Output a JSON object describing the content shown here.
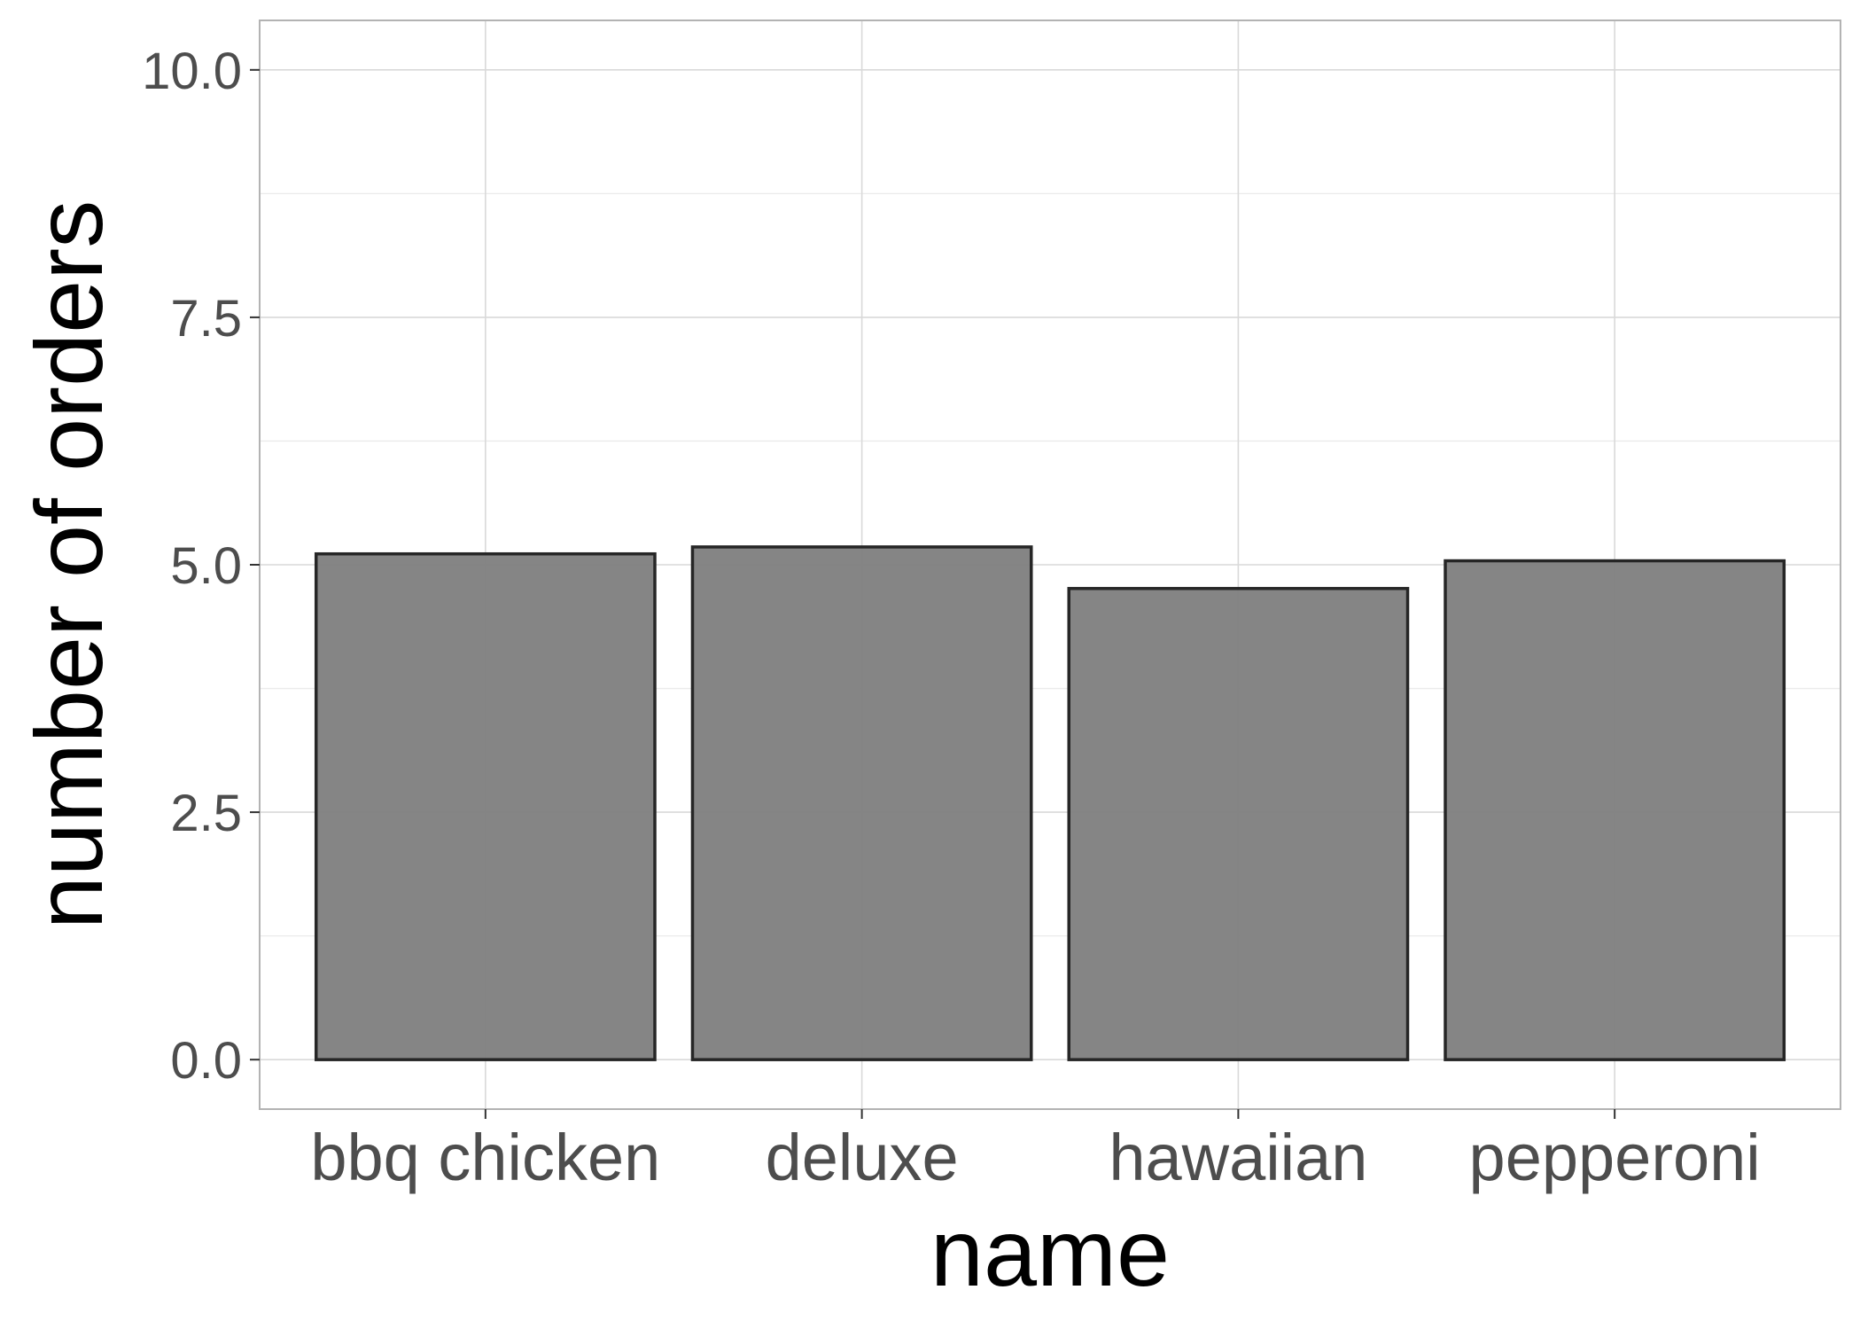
{
  "chart_data": {
    "type": "bar",
    "categories": [
      "bbq chicken",
      "deluxe",
      "hawaiian",
      "pepperoni"
    ],
    "values": [
      5.11,
      5.18,
      4.76,
      5.04
    ],
    "xlabel": "name",
    "ylabel": "number of orders",
    "ylim": [
      -0.5,
      10.5
    ],
    "yticks": [
      0.0,
      2.5,
      5.0,
      7.5,
      10.0
    ],
    "ytick_labels": [
      "0.0",
      "2.5",
      "5.0",
      "7.5",
      "10.0"
    ],
    "grid": true,
    "bar_fill": "#808080",
    "bar_stroke": "#262626",
    "panel_border": "#b3b3b3",
    "grid_major": "#d9d9d9",
    "grid_minor": "#ebebeb"
  }
}
